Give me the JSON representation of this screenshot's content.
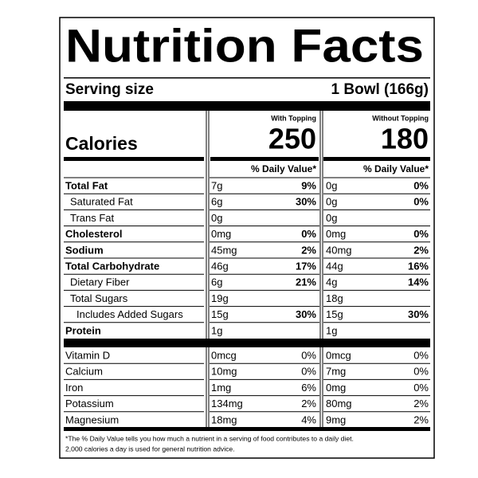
{
  "title": "Nutrition Facts",
  "serving": {
    "label": "Serving size",
    "value": "1 Bowl (166g)"
  },
  "calories_label": "Calories",
  "columns": [
    {
      "heading": "With Topping",
      "calories": "250",
      "dv_header": "% Daily Value*"
    },
    {
      "heading": "Without Topping",
      "calories": "180",
      "dv_header": "% Daily Value*"
    }
  ],
  "rows": [
    {
      "name": "Total Fat",
      "level": 0,
      "bold": true,
      "values": [
        [
          "7g",
          "9%"
        ],
        [
          "0g",
          "0%"
        ]
      ]
    },
    {
      "name": "Saturated Fat",
      "level": 1,
      "bold": false,
      "values": [
        [
          "6g",
          "30%"
        ],
        [
          "0g",
          "0%"
        ]
      ]
    },
    {
      "name": "Trans Fat",
      "level": 1,
      "bold": false,
      "values": [
        [
          "0g"
        ],
        [
          "0g"
        ]
      ]
    },
    {
      "name": "Cholesterol",
      "level": 0,
      "bold": true,
      "values": [
        [
          "0mg",
          "0%"
        ],
        [
          "0mg",
          "0%"
        ]
      ]
    },
    {
      "name": "Sodium",
      "level": 0,
      "bold": true,
      "values": [
        [
          "45mg",
          "2%"
        ],
        [
          "40mg",
          "2%"
        ]
      ]
    },
    {
      "name": "Total Carbohydrate",
      "level": 0,
      "bold": true,
      "values": [
        [
          "46g",
          "17%"
        ],
        [
          "44g",
          "16%"
        ]
      ]
    },
    {
      "name": "Dietary Fiber",
      "level": 1,
      "bold": false,
      "values": [
        [
          "6g",
          "21%"
        ],
        [
          "4g",
          "14%"
        ]
      ]
    },
    {
      "name": "Total Sugars",
      "level": 1,
      "bold": false,
      "values": [
        [
          "19g"
        ],
        [
          "18g"
        ]
      ]
    },
    {
      "name": "Includes Added Sugars",
      "level": 2,
      "bold": false,
      "values": [
        [
          "15g",
          "30%"
        ],
        [
          "15g",
          "30%"
        ]
      ]
    },
    {
      "name": "Protein",
      "level": 0,
      "bold": true,
      "values": [
        [
          "1g"
        ],
        [
          "1g"
        ]
      ]
    }
  ],
  "minerals": [
    {
      "name": "Vitamin D",
      "values": [
        [
          "0mcg",
          "0%"
        ],
        [
          "0mcg",
          "0%"
        ]
      ]
    },
    {
      "name": "Calcium",
      "values": [
        [
          "10mg",
          "0%"
        ],
        [
          "7mg",
          "0%"
        ]
      ]
    },
    {
      "name": "Iron",
      "values": [
        [
          "1mg",
          "6%"
        ],
        [
          "0mg",
          "0%"
        ]
      ]
    },
    {
      "name": "Potassium",
      "values": [
        [
          "134mg",
          "2%"
        ],
        [
          "80mg",
          "2%"
        ]
      ]
    },
    {
      "name": "Magnesium",
      "values": [
        [
          "18mg",
          "4%"
        ],
        [
          "9mg",
          "2%"
        ]
      ]
    }
  ],
  "footnote": [
    "*The % Daily Value tells you how much a nutrient in a serving of food contributes to a daily diet.",
    "2,000 calories a day is used for general nutrition advice."
  ]
}
